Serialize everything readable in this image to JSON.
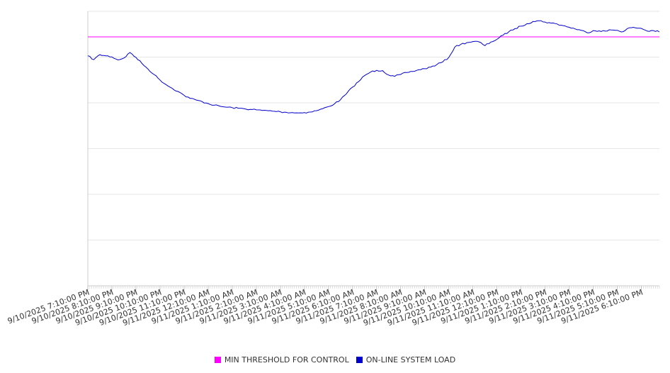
{
  "chart_data": {
    "type": "line",
    "title": "",
    "xlabel": "",
    "ylabel": "",
    "grid": true,
    "legend_position": "bottom",
    "y_scale_relative": [
      0,
      1
    ],
    "x_range": [
      "9/10/2025 7:10:00 PM",
      "9/11/2025 6:55:00 PM"
    ],
    "x_ticks": [
      "9/10/2025 7:10:00 PM",
      "9/10/2025 8:10:00 PM",
      "9/10/2025 9:10:00 PM",
      "9/10/2025 10:10:00 PM",
      "9/10/2025 11:10:00 PM",
      "9/11/2025 12:10:00 AM",
      "9/11/2025 1:10:00 AM",
      "9/11/2025 2:10:00 AM",
      "9/11/2025 3:10:00 AM",
      "9/11/2025 4:10:00 AM",
      "9/11/2025 5:10:00 AM",
      "9/11/2025 6:10:00 AM",
      "9/11/2025 7:10:00 AM",
      "9/11/2025 8:10:00 AM",
      "9/11/2025 9:10:00 AM",
      "9/11/2025 10:10:00 AM",
      "9/11/2025 11:10:00 AM",
      "9/11/2025 12:10:00 PM",
      "9/11/2025 1:10:00 PM",
      "9/11/2025 2:10:00 PM",
      "9/11/2025 3:10:00 PM",
      "9/11/2025 4:10:00 PM",
      "9/11/2025 5:10:00 PM",
      "9/11/2025 6:10:00 PM"
    ],
    "series": [
      {
        "name": "MIN THRESHOLD FOR CONTROL",
        "color": "#ff00ff",
        "kind": "constant",
        "value": 0.907
      },
      {
        "name": "ON-LINE SYSTEM LOAD",
        "color": "#0000cc",
        "kind": "line",
        "points": [
          [
            "9/10/2025 7:10:00 PM",
            0.838
          ],
          [
            "9/10/2025 7:25:00 PM",
            0.824
          ],
          [
            "9/10/2025 7:40:00 PM",
            0.842
          ],
          [
            "9/10/2025 7:55:00 PM",
            0.838
          ],
          [
            "9/10/2025 8:10:00 PM",
            0.834
          ],
          [
            "9/10/2025 8:25:00 PM",
            0.823
          ],
          [
            "9/10/2025 8:40:00 PM",
            0.83
          ],
          [
            "9/10/2025 8:55:00 PM",
            0.85
          ],
          [
            "9/10/2025 9:10:00 PM",
            0.832
          ],
          [
            "9/10/2025 9:25:00 PM",
            0.81
          ],
          [
            "9/10/2025 9:40:00 PM",
            0.79
          ],
          [
            "9/10/2025 9:55:00 PM",
            0.77
          ],
          [
            "9/10/2025 10:10:00 PM",
            0.75
          ],
          [
            "9/10/2025 10:25:00 PM",
            0.733
          ],
          [
            "9/10/2025 10:40:00 PM",
            0.72
          ],
          [
            "9/10/2025 10:55:00 PM",
            0.708
          ],
          [
            "9/10/2025 11:10:00 PM",
            0.694
          ],
          [
            "9/10/2025 11:25:00 PM",
            0.683
          ],
          [
            "9/10/2025 11:40:00 PM",
            0.677
          ],
          [
            "9/10/2025 11:55:00 PM",
            0.671
          ],
          [
            "9/11/2025 12:10:00 AM",
            0.664
          ],
          [
            "9/11/2025 12:25:00 AM",
            0.658
          ],
          [
            "9/11/2025 12:40:00 AM",
            0.654
          ],
          [
            "9/11/2025 12:55:00 AM",
            0.651
          ],
          [
            "9/11/2025 1:10:00 AM",
            0.649
          ],
          [
            "9/11/2025 1:25:00 AM",
            0.647
          ],
          [
            "9/11/2025 1:40:00 AM",
            0.645
          ],
          [
            "9/11/2025 1:55:00 AM",
            0.643
          ],
          [
            "9/11/2025 2:10:00 AM",
            0.641
          ],
          [
            "9/11/2025 2:25:00 AM",
            0.639
          ],
          [
            "9/11/2025 2:40:00 AM",
            0.638
          ],
          [
            "9/11/2025 2:55:00 AM",
            0.636
          ],
          [
            "9/11/2025 3:10:00 AM",
            0.634
          ],
          [
            "9/11/2025 3:25:00 AM",
            0.632
          ],
          [
            "9/11/2025 3:40:00 AM",
            0.631
          ],
          [
            "9/11/2025 3:55:00 AM",
            0.63
          ],
          [
            "9/11/2025 4:10:00 AM",
            0.631
          ],
          [
            "9/11/2025 4:25:00 AM",
            0.633
          ],
          [
            "9/11/2025 4:40:00 AM",
            0.638
          ],
          [
            "9/11/2025 4:55:00 AM",
            0.645
          ],
          [
            "9/11/2025 5:10:00 AM",
            0.653
          ],
          [
            "9/11/2025 5:25:00 AM",
            0.663
          ],
          [
            "9/11/2025 5:40:00 AM",
            0.678
          ],
          [
            "9/11/2025 5:55:00 AM",
            0.7
          ],
          [
            "9/11/2025 6:10:00 AM",
            0.724
          ],
          [
            "9/11/2025 6:25:00 AM",
            0.744
          ],
          [
            "9/11/2025 6:40:00 AM",
            0.766
          ],
          [
            "9/11/2025 6:55:00 AM",
            0.779
          ],
          [
            "9/11/2025 7:10:00 AM",
            0.785
          ],
          [
            "9/11/2025 7:25:00 AM",
            0.784
          ],
          [
            "9/11/2025 7:40:00 AM",
            0.768
          ],
          [
            "9/11/2025 7:55:00 AM",
            0.763
          ],
          [
            "9/11/2025 8:10:00 AM",
            0.77
          ],
          [
            "9/11/2025 8:25:00 AM",
            0.777
          ],
          [
            "9/11/2025 8:40:00 AM",
            0.781
          ],
          [
            "9/11/2025 8:55:00 AM",
            0.787
          ],
          [
            "9/11/2025 9:10:00 AM",
            0.791
          ],
          [
            "9/11/2025 9:25:00 AM",
            0.797
          ],
          [
            "9/11/2025 9:40:00 AM",
            0.806
          ],
          [
            "9/11/2025 9:55:00 AM",
            0.816
          ],
          [
            "9/11/2025 10:10:00 AM",
            0.832
          ],
          [
            "9/11/2025 10:25:00 AM",
            0.87
          ],
          [
            "9/11/2025 10:40:00 AM",
            0.88
          ],
          [
            "9/11/2025 10:55:00 AM",
            0.886
          ],
          [
            "9/11/2025 11:10:00 AM",
            0.89
          ],
          [
            "9/11/2025 11:25:00 AM",
            0.889
          ],
          [
            "9/11/2025 11:40:00 AM",
            0.875
          ],
          [
            "9/11/2025 11:55:00 AM",
            0.888
          ],
          [
            "9/11/2025 12:10:00 PM",
            0.898
          ],
          [
            "9/11/2025 12:25:00 PM",
            0.913
          ],
          [
            "9/11/2025 12:40:00 PM",
            0.926
          ],
          [
            "9/11/2025 12:55:00 PM",
            0.937
          ],
          [
            "9/11/2025 1:10:00 PM",
            0.946
          ],
          [
            "9/11/2025 1:25:00 PM",
            0.955
          ],
          [
            "9/11/2025 1:40:00 PM",
            0.963
          ],
          [
            "9/11/2025 1:55:00 PM",
            0.966
          ],
          [
            "9/11/2025 2:10:00 PM",
            0.961
          ],
          [
            "9/11/2025 2:25:00 PM",
            0.957
          ],
          [
            "9/11/2025 2:40:00 PM",
            0.954
          ],
          [
            "9/11/2025 2:55:00 PM",
            0.948
          ],
          [
            "9/11/2025 3:10:00 PM",
            0.942
          ],
          [
            "9/11/2025 3:25:00 PM",
            0.936
          ],
          [
            "9/11/2025 3:40:00 PM",
            0.931
          ],
          [
            "9/11/2025 3:55:00 PM",
            0.922
          ],
          [
            "9/11/2025 4:10:00 PM",
            0.93
          ],
          [
            "9/11/2025 4:25:00 PM",
            0.929
          ],
          [
            "9/11/2025 4:40:00 PM",
            0.928
          ],
          [
            "9/11/2025 4:55:00 PM",
            0.932
          ],
          [
            "9/11/2025 5:10:00 PM",
            0.931
          ],
          [
            "9/11/2025 5:25:00 PM",
            0.926
          ],
          [
            "9/11/2025 5:40:00 PM",
            0.94
          ],
          [
            "9/11/2025 5:55:00 PM",
            0.94
          ],
          [
            "9/11/2025 6:10:00 PM",
            0.938
          ],
          [
            "9/11/2025 6:25:00 PM",
            0.928
          ],
          [
            "9/11/2025 6:40:00 PM",
            0.93
          ],
          [
            "9/11/2025 6:55:00 PM",
            0.925
          ]
        ]
      }
    ]
  },
  "legend": {
    "threshold_label": "MIN THRESHOLD FOR CONTROL",
    "load_label": "ON-LINE SYSTEM LOAD",
    "threshold_color": "#ff00ff",
    "load_color": "#0000cc"
  }
}
